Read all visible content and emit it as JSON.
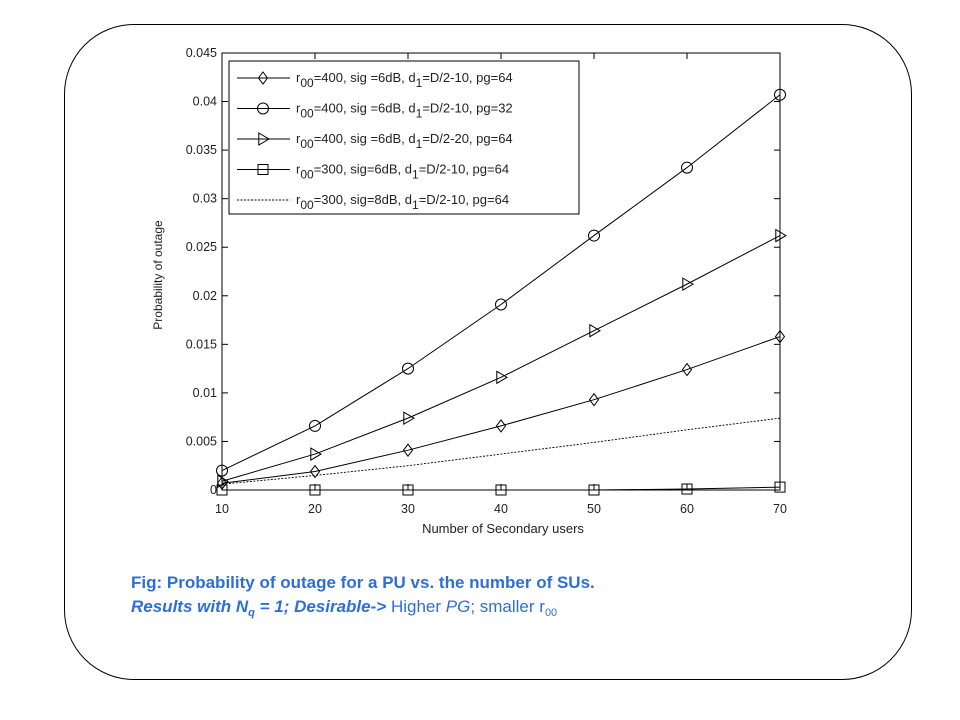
{
  "caption": {
    "line1": "Fig:  Probability of outage for a PU vs. the number of SUs.",
    "line2_a": "Results with N",
    "line2_a_sub": "q",
    "line2_b": " = 1; Desirable-> ",
    "line2_c": " Higher ",
    "line2_d": "PG",
    "line2_e": "; smaller r",
    "line2_e_sub": "00"
  },
  "chart_data": {
    "type": "line",
    "xlabel": "Number  of  Secondary  users",
    "ylabel": "Probability  of outage",
    "xlim": [
      10,
      70
    ],
    "ylim": [
      0,
      0.045
    ],
    "xticks": [
      10,
      20,
      30,
      40,
      50,
      60,
      70
    ],
    "yticks": [
      0,
      0.005,
      0.01,
      0.015,
      0.02,
      0.025,
      0.03,
      0.035,
      0.04,
      0.045
    ],
    "xtick_labels": [
      "10",
      "20",
      "30",
      "40",
      "50",
      "60",
      "70"
    ],
    "ytick_labels": [
      "0",
      "0.005",
      "0.01",
      "0.015",
      "0.02",
      "0.025",
      "0.03",
      "0.035",
      "0.04",
      "0.045"
    ],
    "grid": false,
    "legend_position": "top-left",
    "x": [
      10,
      20,
      30,
      40,
      50,
      60,
      70
    ],
    "series": [
      {
        "name": "r00=400,  sig =6dB,  d1=D/2-10,  pg=64",
        "label_parts": [
          "r",
          "00",
          "=400,  sig =6dB,  d",
          "1",
          "=D/2-10,  pg=64"
        ],
        "marker": "diamond",
        "style": "solid",
        "values": [
          0.0007,
          0.0019,
          0.0041,
          0.0066,
          0.0093,
          0.0124,
          0.0158
        ]
      },
      {
        "name": "r00=400,  sig =6dB,  d1=D/2-10,  pg=32",
        "label_parts": [
          "r",
          "00",
          "=400,  sig =6dB,  d",
          "1",
          "=D/2-10,  pg=32"
        ],
        "marker": "circle",
        "style": "solid",
        "values": [
          0.002,
          0.0066,
          0.0125,
          0.0191,
          0.0262,
          0.0332,
          0.0407
        ]
      },
      {
        "name": "r00=400,  sig =6dB,  d1=D/2-20,  pg=64",
        "label_parts": [
          "r",
          "00",
          "=400,  sig =6dB,  d",
          "1",
          "=D/2-20,  pg=64"
        ],
        "marker": "triangle-right",
        "style": "solid",
        "values": [
          0.0009,
          0.0037,
          0.0074,
          0.0116,
          0.0164,
          0.0212,
          0.0262
        ]
      },
      {
        "name": "r00=300,  sig=6dB,  d1=D/2-10,   pg=64",
        "label_parts": [
          "r",
          "00",
          "=300,  sig=6dB,  d",
          "1",
          "=D/2-10,   pg=64"
        ],
        "marker": "square",
        "style": "solid",
        "values": [
          0.0,
          0.0,
          0.0,
          0.0,
          0.0,
          0.0001,
          0.0003
        ]
      },
      {
        "name": "r00=300,  sig=8dB,  d1=D/2-10,  pg=64",
        "label_parts": [
          "r",
          "00",
          "=300,  sig=8dB,  d",
          "1",
          "=D/2-10,  pg=64"
        ],
        "marker": "none",
        "style": "dotted",
        "values": [
          0.0006,
          0.0015,
          0.0025,
          0.0037,
          0.0049,
          0.0062,
          0.0074
        ]
      }
    ]
  }
}
